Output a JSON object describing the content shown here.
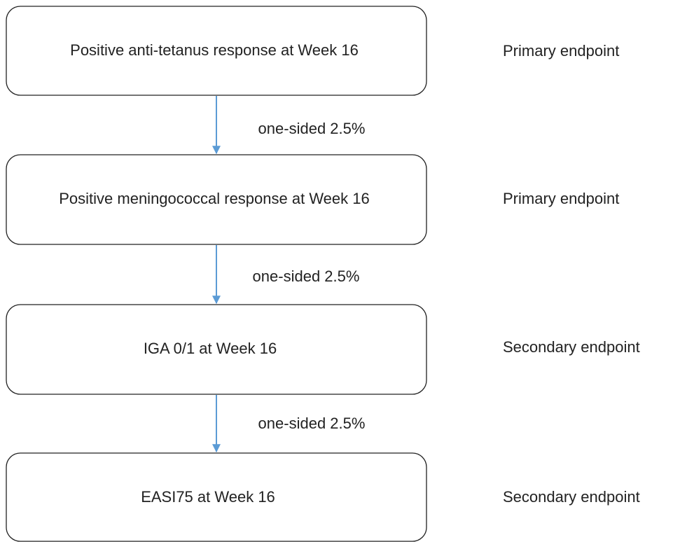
{
  "nodes": [
    {
      "label": "Positive anti-tetanus response at Week 16",
      "endpoint": "Primary endpoint"
    },
    {
      "label": "Positive meningococcal response at Week 16",
      "endpoint": "Primary endpoint"
    },
    {
      "label": "IGA 0/1 at Week 16",
      "endpoint": "Secondary endpoint"
    },
    {
      "label": "EASI75 at Week 16",
      "endpoint": "Secondary endpoint"
    }
  ],
  "edges": [
    {
      "label": "one-sided 2.5%"
    },
    {
      "label": "one-sided 2.5%"
    },
    {
      "label": "one-sided 2.5%"
    }
  ]
}
